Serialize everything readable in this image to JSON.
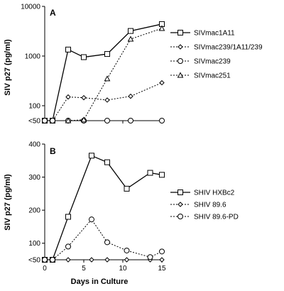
{
  "chart_data": [
    {
      "panel": "A",
      "type": "line",
      "scale": "log",
      "ylabel": "SIV p27 (pg/ml)",
      "ylim": [
        50,
        10000
      ],
      "yticks": [
        "10000",
        "1000",
        "100",
        "<50"
      ],
      "ytick_values": [
        10000,
        1000,
        100,
        50
      ],
      "xlim": [
        0,
        15
      ],
      "legend_position": "right",
      "series": [
        {
          "name": "SIVmac1A11",
          "marker": "square",
          "dash": "solid",
          "x": [
            0,
            1,
            3,
            5,
            8,
            11,
            15
          ],
          "y": [
            50,
            50,
            1350,
            950,
            1100,
            3200,
            4400
          ]
        },
        {
          "name": "SIVmac239/1A11/239",
          "marker": "diamond",
          "dash": "dotted",
          "x": [
            0,
            1,
            3,
            5,
            8,
            11,
            15
          ],
          "y": [
            50,
            50,
            150,
            145,
            130,
            155,
            290
          ]
        },
        {
          "name": "SIVmac239",
          "marker": "circle",
          "dash": "dotted",
          "x": [
            0,
            1,
            3,
            5,
            8,
            11,
            15
          ],
          "y": [
            50,
            50,
            50,
            50,
            50,
            50,
            50
          ]
        },
        {
          "name": "SIVmac251",
          "marker": "triangle",
          "dash": "dotted",
          "x": [
            3,
            5,
            8,
            11,
            15
          ],
          "y": [
            50,
            52,
            350,
            2200,
            3600
          ]
        }
      ]
    },
    {
      "panel": "B",
      "type": "line",
      "scale": "linear",
      "ylabel": "SIV p27 (pg/ml)",
      "xlabel": "Days in Culture",
      "ylim": [
        50,
        400
      ],
      "yticks": [
        "400",
        "300",
        "200",
        "100",
        "<50"
      ],
      "ytick_values": [
        400,
        300,
        200,
        100,
        50
      ],
      "xticks": [
        "0",
        "5",
        "10",
        "15"
      ],
      "xtick_values": [
        0,
        5,
        10,
        15
      ],
      "xlim": [
        0,
        15
      ],
      "legend_position": "right",
      "series": [
        {
          "name": "SHIV HXBc2",
          "marker": "square",
          "dash": "solid",
          "x": [
            0,
            1,
            3,
            6,
            8,
            10.5,
            13.5,
            15
          ],
          "y": [
            50,
            50,
            180,
            365,
            345,
            265,
            313,
            307
          ]
        },
        {
          "name": "SHIV 89.6",
          "marker": "diamond",
          "dash": "dotted",
          "x": [
            0,
            1,
            3,
            6,
            8,
            10.5,
            13.5,
            15
          ],
          "y": [
            50,
            50,
            50,
            50,
            50,
            50,
            50,
            50
          ]
        },
        {
          "name": "SHIV 89.6-PD",
          "marker": "circle",
          "dash": "dotted",
          "x": [
            0,
            1,
            3,
            6,
            8,
            10.5,
            13.5,
            15
          ],
          "y": [
            50,
            50,
            90,
            172,
            103,
            78,
            58,
            75
          ]
        }
      ]
    }
  ]
}
